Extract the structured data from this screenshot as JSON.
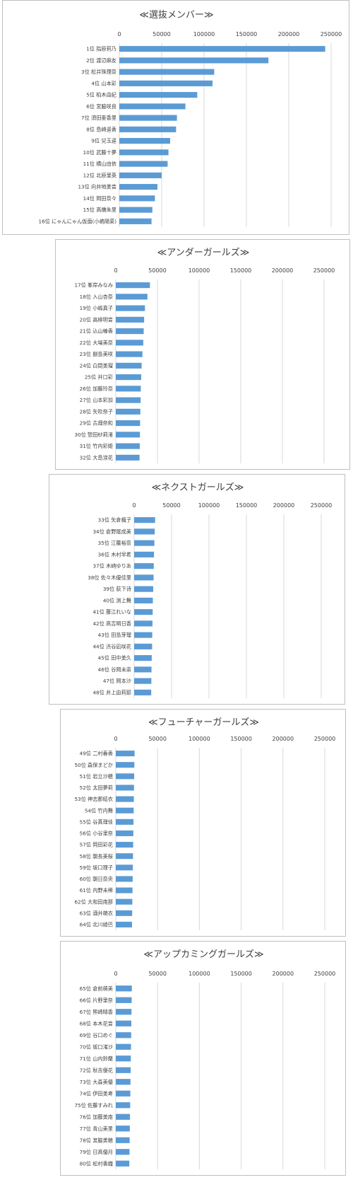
{
  "chart_data": [
    {
      "type": "bar",
      "orientation": "horizontal",
      "title": "≪選抜メンバー≫",
      "xlim": [
        0,
        250000
      ],
      "ticks": [
        "0",
        "50000",
        "100000",
        "150000",
        "200000",
        "250000"
      ],
      "grid": true,
      "colors": {
        "bar": "#5b9bd5",
        "grid": "#d9d9d9"
      },
      "categories": [
        "1位 指原莉乃",
        "2位 渡辺麻友",
        "3位 松井珠理奈",
        "4位 山本彩",
        "5位 柏木由紀",
        "6位 宮脇咲良",
        "7位 須田亜香里",
        "8位 島崎遥香",
        "9位 兒玉遥",
        "10位 武藤十夢",
        "11位 横山由依",
        "12位 北原里英",
        "13位 向井地美音",
        "14位 岡田奈々",
        "15位 高橋朱里",
        "16位 にゃんにゃん仮面(小嶋陽菜)"
      ],
      "values": [
        243000,
        176000,
        112000,
        110000,
        92000,
        78000,
        68000,
        67000,
        60000,
        58000,
        57000,
        50000,
        45000,
        42000,
        39000,
        38000
      ]
    },
    {
      "type": "bar",
      "orientation": "horizontal",
      "title": "≪アンダーガールズ≫",
      "xlim": [
        0,
        250000
      ],
      "ticks": [
        "0",
        "50000",
        "100000",
        "150000",
        "200000",
        "250000"
      ],
      "grid": true,
      "colors": {
        "bar": "#5b9bd5",
        "grid": "#d9d9d9"
      },
      "categories": [
        "17位 峯岸みなみ",
        "18位 入山杏奈",
        "19位 小嶋真子",
        "20位 高柳明音",
        "21位 込山榛香",
        "22位 大場美奈",
        "23位 副島美咲",
        "24位 白間美瑠",
        "25位 井口彩",
        "26位 加藤玲奈",
        "27位 山本彩加",
        "28位 矢吹奈子",
        "29位 古畑奈和",
        "30位 惣田紗莉渚",
        "31位 竹内彩姫",
        "32位 大島涼花"
      ],
      "values": [
        41000,
        38000,
        35000,
        34000,
        33500,
        33000,
        32000,
        31000,
        30500,
        30000,
        29800,
        29500,
        29200,
        29000,
        28800,
        28500
      ]
    },
    {
      "type": "bar",
      "orientation": "horizontal",
      "title": "≪ネクストガールズ≫",
      "xlim": [
        0,
        250000
      ],
      "ticks": [
        "0",
        "50000",
        "100000",
        "150000",
        "200000",
        "250000"
      ],
      "grid": true,
      "colors": {
        "bar": "#5b9bd5",
        "grid": "#d9d9d9"
      },
      "categories": [
        "33位 矢倉楓子",
        "34位 倉野尾成美",
        "35位 江籠裕奈",
        "36位 木村早希",
        "37位 木崎ゆりあ",
        "38位 佐々木優佳里",
        "39位 荻下诗",
        "40位 渕上舞",
        "41位 藤江れいな",
        "42位 高吉明日香",
        "43位 田島芽瑠",
        "44位 渋谷凪咲花",
        "45位 田中美久",
        "46位 谷岡未崇",
        "47位 岡本沙",
        "48位 井上由莉耶"
      ],
      "values": [
        28000,
        27500,
        27000,
        26500,
        26200,
        26000,
        25500,
        25000,
        24800,
        24500,
        24200,
        24000,
        23500,
        23200,
        23000,
        22800
      ]
    },
    {
      "type": "bar",
      "orientation": "horizontal",
      "title": "≪フューチャーガールズ≫",
      "xlim": [
        0,
        250000
      ],
      "ticks": [
        "0",
        "50000",
        "100000",
        "150000",
        "200000",
        "250000"
      ],
      "grid": true,
      "colors": {
        "bar": "#5b9bd5",
        "grid": "#d9d9d9"
      },
      "categories": [
        "49位 二村春香",
        "50位 森保まどか",
        "51位 岩立沙穂",
        "52位 太田夢莉",
        "53位 神志那結衣",
        "54位 竹内舞",
        "55位 谷真理佳",
        "56位 小谷里奈",
        "57位 岡田彩花",
        "58位 朝長美桜",
        "59位 坂口理子",
        "60位 朝日奈央",
        "61位 内野未稀",
        "62位 大和田南那",
        "63位 酒井萌衣",
        "64位 北川綾巴"
      ],
      "values": [
        22500,
        22200,
        22000,
        21800,
        21600,
        21400,
        21200,
        21000,
        20800,
        20600,
        20400,
        20200,
        20000,
        19800,
        19600,
        19400
      ]
    },
    {
      "type": "bar",
      "orientation": "horizontal",
      "title": "≪アップカミングガールズ≫",
      "xlim": [
        0,
        250000
      ],
      "ticks": [
        "0",
        "50000",
        "100000",
        "150000",
        "200000",
        "250000"
      ],
      "grid": true,
      "colors": {
        "bar": "#5b9bd5",
        "grid": "#d9d9d9"
      },
      "categories": [
        "65位 倉前萌美",
        "66位 片野里奈",
        "67位 熊崎晴香",
        "68位 本木花音",
        "69位 谷口めぐ",
        "70位 坂口渚沙",
        "71位 山内鈴蘭",
        "72位 秋吉優花",
        "73位 大森美優",
        "74位 伊田美卑",
        "75位 佐藤すみれ",
        "76位 加藤美南",
        "77位 青山美里",
        "78位 宮脇美穂",
        "79位 日高優月",
        "80位 松村香織"
      ],
      "values": [
        19200,
        19000,
        18800,
        18600,
        18400,
        18200,
        18000,
        17800,
        17600,
        17400,
        17200,
        17000,
        16800,
        16600,
        16400,
        16200
      ]
    }
  ]
}
